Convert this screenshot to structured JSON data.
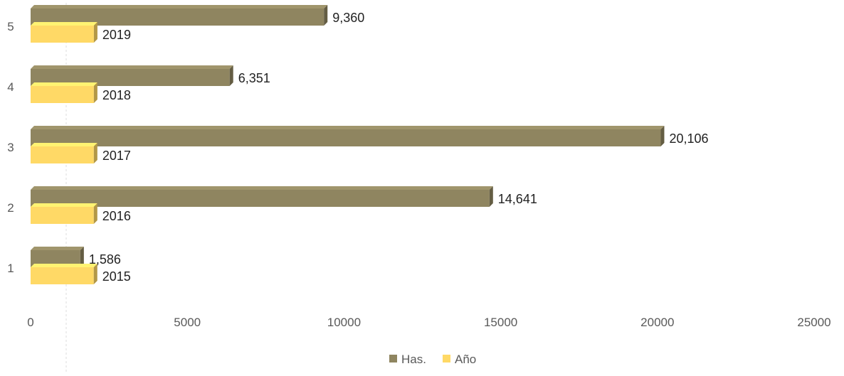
{
  "chart_data": {
    "type": "bar",
    "orientation": "horizontal",
    "style": "3d",
    "categories": [
      "1",
      "2",
      "3",
      "4",
      "5"
    ],
    "series": [
      {
        "name": "Has.",
        "values": [
          1586,
          14641,
          20106,
          6351,
          9360
        ],
        "labels": [
          "1,586",
          "14,641",
          "20,106",
          "6,351",
          "9,360"
        ],
        "color": "#8f8560"
      },
      {
        "name": "Año",
        "values": [
          2015,
          2016,
          2017,
          2018,
          2019
        ],
        "labels": [
          "2015",
          "2016",
          "2017",
          "2018",
          "2019"
        ],
        "color": "#ffd966"
      }
    ],
    "xticks": [
      "0",
      "5000",
      "10000",
      "15000",
      "20000",
      "25000"
    ],
    "xlim": [
      0,
      25000
    ],
    "legend": "bottom",
    "grid": false,
    "title": "",
    "xlabel": "",
    "ylabel": ""
  }
}
